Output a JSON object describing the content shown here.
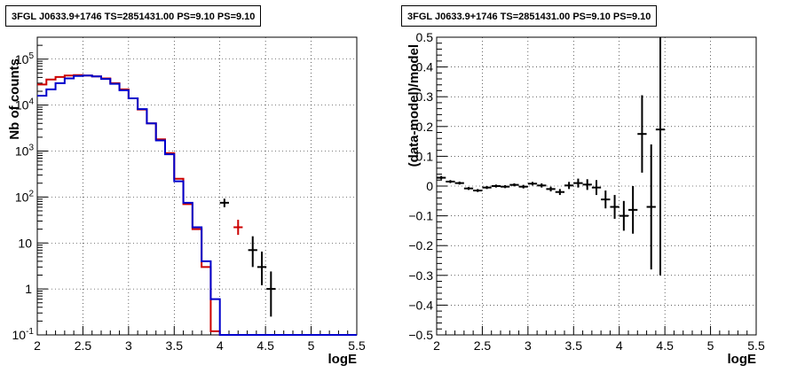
{
  "chart_data": [
    {
      "type": "line",
      "title": "3FGL J0633.9+1746 TS=2851431.00 PS=9.10 PS=9.10",
      "xlabel": "logE",
      "ylabel": "Nb of counts",
      "xlim": [
        2,
        5.5
      ],
      "ylim": [
        0.1,
        300000
      ],
      "yscale": "log",
      "grid": true,
      "x_ticks": [
        "2",
        "2.5",
        "3",
        "3.5",
        "4",
        "4.5",
        "5",
        "5.5"
      ],
      "y_ticks": [
        "10^-1",
        "1",
        "10",
        "10^2",
        "10^3",
        "10^4",
        "10^5"
      ],
      "bin_edges": [
        2.0,
        2.1,
        2.2,
        2.3,
        2.4,
        2.5,
        2.6,
        2.7,
        2.8,
        2.9,
        3.0,
        3.1,
        3.2,
        3.3,
        3.4,
        3.5,
        3.6,
        3.7,
        3.8,
        3.9,
        4.0,
        4.1,
        4.2,
        4.3,
        4.4,
        4.5,
        4.6,
        4.7,
        4.8,
        4.9,
        5.0,
        5.1,
        5.2,
        5.3,
        5.4,
        5.5
      ],
      "series": [
        {
          "kind": "model",
          "color": "#cc0000",
          "values": [
            28000,
            36000,
            41000,
            44000,
            45000,
            44000,
            42000,
            38000,
            30000,
            22000,
            14000,
            8000,
            4000,
            1800,
            900,
            250,
            70,
            20,
            3,
            0.12,
            0.1,
            0.1,
            0.1,
            0.1,
            0.1,
            0.1,
            0.1,
            0.1,
            0.1,
            0.1,
            0.1,
            0.1,
            0.1,
            0.1,
            0.1
          ]
        },
        {
          "kind": "data",
          "color": "#0000cc",
          "values": [
            16000,
            22000,
            30000,
            38000,
            43000,
            44000,
            42000,
            37000,
            29000,
            21000,
            14000,
            8200,
            4000,
            1700,
            850,
            220,
            75,
            22,
            4,
            0.6,
            0.1,
            0.1,
            0.1,
            0.1,
            0.1,
            0.1,
            0.1,
            0.1,
            0.1,
            0.1,
            0.1,
            0.1,
            0.1,
            0.1,
            0.1
          ]
        }
      ],
      "error_points": [
        {
          "x": 4.05,
          "y": 75,
          "ylo": 60,
          "yhi": 92,
          "color": "#000000"
        },
        {
          "x": 4.2,
          "y": 22,
          "ylo": 15,
          "yhi": 32,
          "color": "#cc0000"
        },
        {
          "x": 4.36,
          "y": 7,
          "ylo": 3,
          "yhi": 14,
          "color": "#000000"
        },
        {
          "x": 4.46,
          "y": 3,
          "ylo": 1.2,
          "yhi": 6.5,
          "color": "#000000"
        },
        {
          "x": 4.56,
          "y": 1,
          "ylo": 0.25,
          "yhi": 2.4,
          "color": "#000000"
        }
      ]
    },
    {
      "type": "scatter",
      "title": "3FGL J0633.9+1746 TS=2851431.00 PS=9.10 PS=9.10",
      "xlabel": "logE",
      "ylabel": "(data-model)/model",
      "xlim": [
        2,
        5.5
      ],
      "ylim": [
        -0.5,
        0.5
      ],
      "grid": true,
      "x_ticks": [
        "2",
        "2.5",
        "3",
        "3.5",
        "4",
        "4.5",
        "5",
        "5.5"
      ],
      "y_ticks": [
        "-0.5",
        "-0.4",
        "-0.3",
        "-0.2",
        "-0.1",
        "0",
        "0.1",
        "0.2",
        "0.3",
        "0.4",
        "0.5"
      ],
      "points": [
        {
          "x": 2.05,
          "y": 0.028,
          "err": 0.006
        },
        {
          "x": 2.15,
          "y": 0.015,
          "err": 0.005
        },
        {
          "x": 2.25,
          "y": 0.01,
          "err": 0.005
        },
        {
          "x": 2.35,
          "y": -0.008,
          "err": 0.005
        },
        {
          "x": 2.45,
          "y": -0.015,
          "err": 0.005
        },
        {
          "x": 2.55,
          "y": -0.005,
          "err": 0.005
        },
        {
          "x": 2.65,
          "y": 0.0,
          "err": 0.005
        },
        {
          "x": 2.75,
          "y": -0.002,
          "err": 0.005
        },
        {
          "x": 2.85,
          "y": 0.004,
          "err": 0.005
        },
        {
          "x": 2.95,
          "y": -0.002,
          "err": 0.006
        },
        {
          "x": 3.05,
          "y": 0.008,
          "err": 0.006
        },
        {
          "x": 3.15,
          "y": 0.002,
          "err": 0.007
        },
        {
          "x": 3.25,
          "y": -0.01,
          "err": 0.008
        },
        {
          "x": 3.35,
          "y": -0.02,
          "err": 0.01
        },
        {
          "x": 3.45,
          "y": 0.002,
          "err": 0.012
        },
        {
          "x": 3.55,
          "y": 0.01,
          "err": 0.015
        },
        {
          "x": 3.65,
          "y": 0.005,
          "err": 0.018
        },
        {
          "x": 3.75,
          "y": -0.005,
          "err": 0.025
        },
        {
          "x": 3.85,
          "y": -0.045,
          "err": 0.03
        },
        {
          "x": 3.95,
          "y": -0.07,
          "err": 0.04
        },
        {
          "x": 4.05,
          "y": -0.1,
          "err": 0.05
        },
        {
          "x": 4.15,
          "y": -0.08,
          "err": 0.08
        },
        {
          "x": 4.25,
          "y": 0.175,
          "err": 0.13
        },
        {
          "x": 4.35,
          "y": -0.07,
          "err": 0.21
        },
        {
          "x": 4.45,
          "y": 0.19,
          "err": 0.49
        }
      ]
    }
  ]
}
